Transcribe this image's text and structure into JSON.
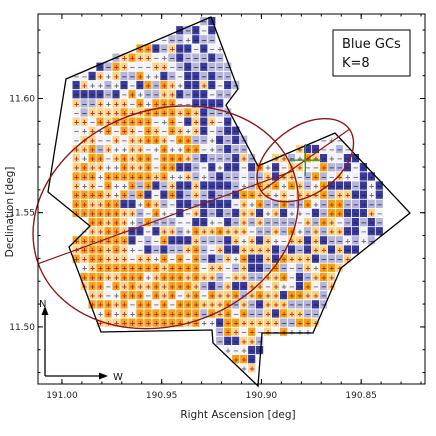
{
  "chart_data": {
    "type": "heatmap",
    "title": "",
    "xlabel": "Right Ascension [deg]",
    "ylabel": "Declination [deg]",
    "xlim": [
      191.012,
      190.818
    ],
    "ylim": [
      11.475,
      11.637
    ],
    "x_ticks": [
      191.0,
      190.95,
      190.9,
      190.85
    ],
    "x_tick_labels": [
      "191.00",
      "190.95",
      "190.90",
      "190.85"
    ],
    "y_ticks": [
      11.5,
      11.55,
      11.6
    ],
    "y_tick_labels": [
      "11.50",
      "11.55",
      "11.60"
    ],
    "legend": {
      "line1": "Blue GCs",
      "line2": "K=8",
      "placement": "top-right"
    },
    "compass": {
      "north": "N",
      "west": "W"
    },
    "colors": {
      "positive_strong": "#f5a21b",
      "positive_light": "#fbd48a",
      "negative_strong": "#3a3a9a",
      "negative_light": "#b6b6dc",
      "neutral": "#f2f2f8",
      "ellipse": "#8b1a1a",
      "center_cross": "#2e9e2e",
      "footprint": "#000000"
    },
    "grid": {
      "ra_start": 190.9927,
      "ra_step": -0.004,
      "dec_start": 11.4817,
      "dec_step": 0.004,
      "cols": 39,
      "rows": 39
    },
    "ellipses": [
      {
        "name": "large",
        "ra_center": 190.948,
        "dec_center": 11.548,
        "semi_major_deg": 0.068,
        "semi_minor_deg": 0.054,
        "pa_deg": 20
      },
      {
        "name": "small",
        "ra_center": 190.878,
        "dec_center": 11.573,
        "semi_major_deg": 0.027,
        "semi_minor_deg": 0.017,
        "pa_deg": 35
      }
    ],
    "center_cross": {
      "ra": 190.878,
      "dec": 11.573
    }
  }
}
